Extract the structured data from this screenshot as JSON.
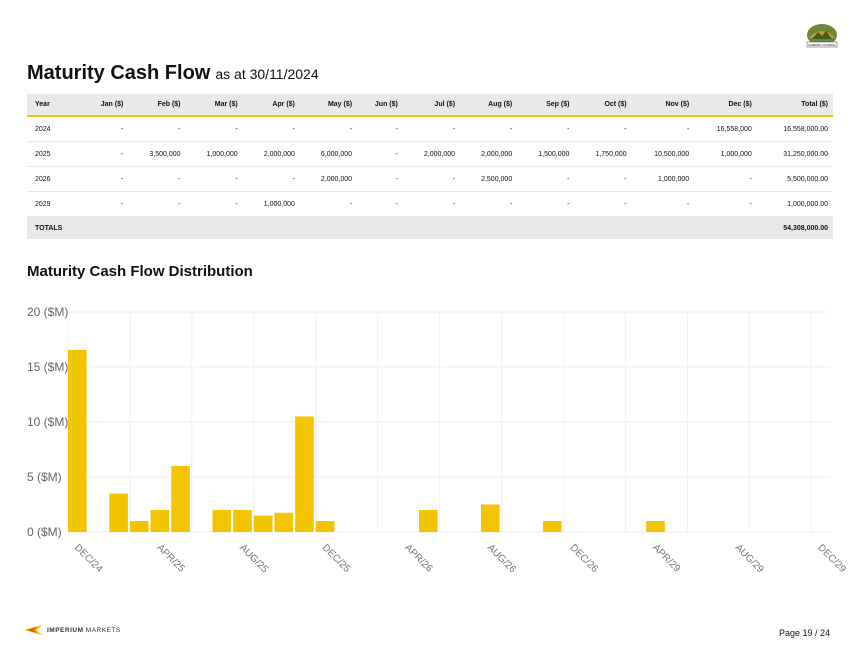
{
  "header": {
    "title": "Maturity Cash Flow",
    "subtitle": "as at 30/11/2024",
    "council_logo_text": "GABONG COUNCIL"
  },
  "table": {
    "columns": [
      "Year",
      "Jan ($)",
      "Feb ($)",
      "Mar ($)",
      "Apr ($)",
      "May ($)",
      "Jun ($)",
      "Jul ($)",
      "Aug ($)",
      "Sep ($)",
      "Oct ($)",
      "Nov ($)",
      "Dec ($)",
      "Total ($)"
    ],
    "rows": [
      [
        "2024",
        "-",
        "-",
        "-",
        "-",
        "-",
        "-",
        "-",
        "-",
        "-",
        "-",
        "-",
        "16,558,000",
        "16,558,000.00"
      ],
      [
        "2025",
        "-",
        "3,500,000",
        "1,000,000",
        "2,000,000",
        "6,000,000",
        "-",
        "2,000,000",
        "2,000,000",
        "1,500,000",
        "1,750,000",
        "10,500,000",
        "1,000,000",
        "31,250,000.00"
      ],
      [
        "2026",
        "-",
        "-",
        "-",
        "-",
        "2,000,000",
        "-",
        "-",
        "2,500,000",
        "-",
        "-",
        "1,000,000",
        "-",
        "5,500,000.00"
      ],
      [
        "2029",
        "-",
        "-",
        "-",
        "1,000,000",
        "-",
        "-",
        "-",
        "-",
        "-",
        "-",
        "-",
        "-",
        "1,000,000.00"
      ]
    ],
    "totals_label": "TOTALS",
    "totals_value": "54,308,000.00"
  },
  "distribution": {
    "title": "Maturity Cash Flow Distribution"
  },
  "chart_data": {
    "type": "bar",
    "title": "",
    "ylabel": "",
    "xlabel": "",
    "ylim": [
      0,
      20
    ],
    "y_ticks": [
      "0 ($M)",
      "5 ($M)",
      "10 ($M)",
      "15 ($M)",
      "20 ($M)"
    ],
    "x_tick_labels": [
      "DEC/24",
      "APR/25",
      "AUG/25",
      "DEC/25",
      "APR/26",
      "AUG/26",
      "DEC/26",
      "APR/29",
      "AUG/29",
      "DEC/29"
    ],
    "grid": true,
    "bar_color": "#f5c400",
    "values": [
      16.558,
      0,
      3.5,
      1.0,
      2.0,
      6.0,
      0,
      2.0,
      2.0,
      1.5,
      1.75,
      10.5,
      1.0,
      0,
      0,
      0,
      0,
      2.0,
      0,
      0,
      2.5,
      0,
      0,
      1.0,
      0,
      0,
      0,
      0,
      1.0,
      0,
      0,
      0,
      0,
      0,
      0,
      0,
      0
    ],
    "categories": [
      "DEC/24",
      "JAN/25",
      "FEB/25",
      "MAR/25",
      "APR/25",
      "MAY/25",
      "JUN/25",
      "JUL/25",
      "AUG/25",
      "SEP/25",
      "OCT/25",
      "NOV/25",
      "DEC/25",
      "JAN/26",
      "FEB/26",
      "MAR/26",
      "APR/26",
      "MAY/26",
      "JUN/26",
      "JUL/26",
      "AUG/26",
      "SEP/26",
      "OCT/26",
      "NOV/26",
      "DEC/26",
      "JAN/29",
      "FEB/29",
      "MAR/29",
      "APR/29",
      "MAY/29",
      "JUN/29",
      "JUL/29",
      "AUG/29",
      "SEP/29",
      "OCT/29",
      "NOV/29",
      "DEC/29"
    ]
  },
  "footer": {
    "brand_bold": "IMPERIUM",
    "brand_light": " MARKETS",
    "page": "Page 19 / 24"
  },
  "colors": {
    "accent": "#f5c400",
    "table_header_bg": "#e9e9e9"
  }
}
